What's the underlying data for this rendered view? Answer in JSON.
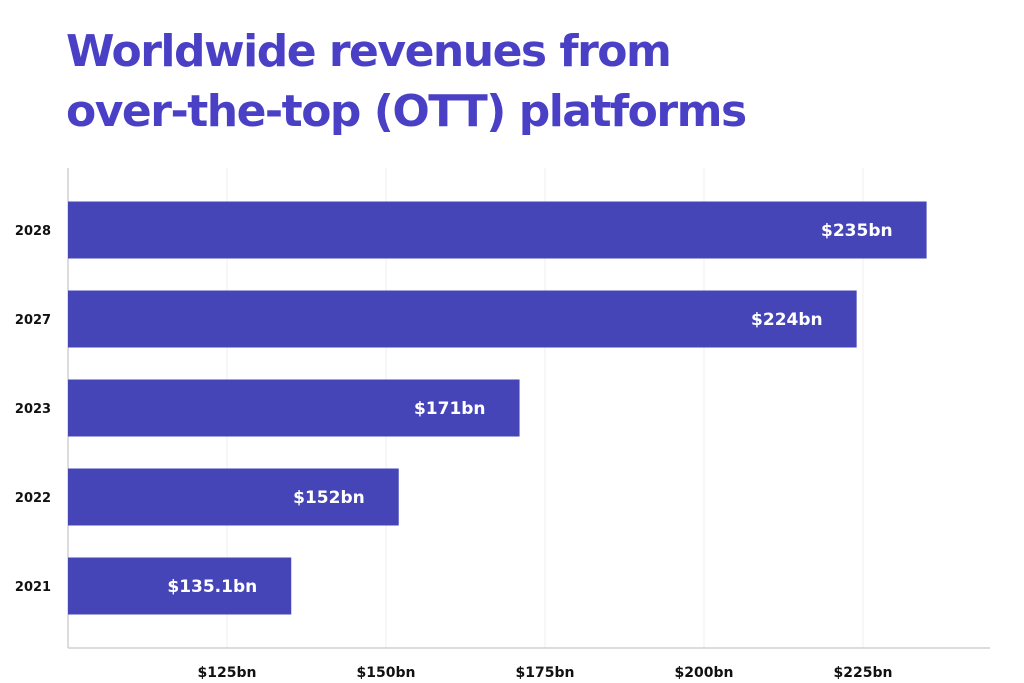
{
  "chart_data": {
    "type": "bar",
    "orientation": "horizontal",
    "title_lines": [
      "Worldwide revenues from",
      "over-the-top (OTT) platforms"
    ],
    "categories": [
      "2028",
      "2027",
      "2023",
      "2022",
      "2021"
    ],
    "values": [
      235,
      224,
      171,
      152,
      135.1
    ],
    "data_labels": [
      "$235bn",
      "$224bn",
      "$171bn",
      "$152bn",
      "$135.1bn"
    ],
    "x_ticks": [
      125,
      150,
      175,
      200,
      225
    ],
    "x_tick_labels": [
      "$125bn",
      "$150bn",
      "$175bn",
      "$200bn",
      "$225bn"
    ],
    "xlim": [
      100,
      245
    ],
    "xlabel": "",
    "ylabel": "",
    "grid": true,
    "colors": {
      "bar": "#4545b8",
      "title": "#4a40c6",
      "grid": "#efefef",
      "axis": "#d0d0d0"
    }
  }
}
